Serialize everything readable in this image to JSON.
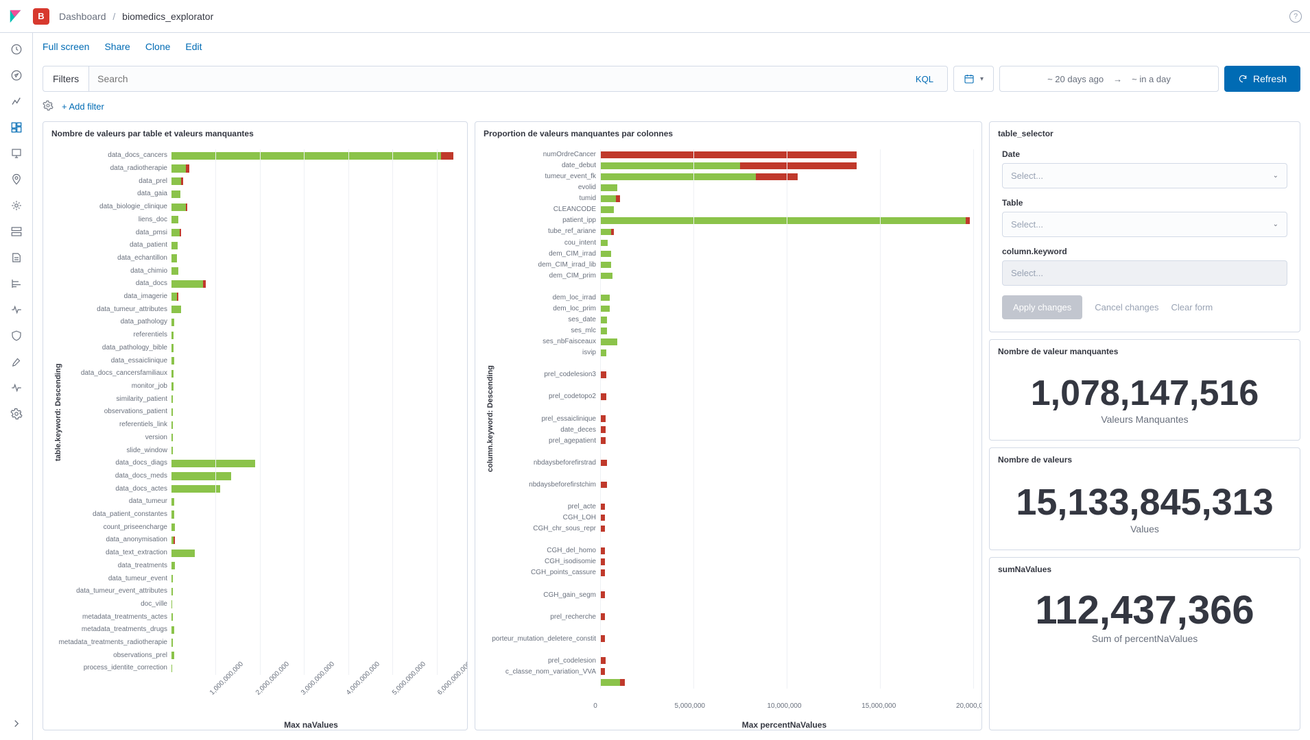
{
  "breadcrumb": {
    "root": "Dashboard",
    "current": "biomedics_explorator"
  },
  "spaceBadge": "B",
  "actions": {
    "fullscreen": "Full screen",
    "share": "Share",
    "clone": "Clone",
    "edit": "Edit"
  },
  "query": {
    "filtersLabel": "Filters",
    "placeholder": "Search",
    "kql": "KQL"
  },
  "dateRange": {
    "from": "~ 20 days ago",
    "to": "~ in a day"
  },
  "refreshLabel": "Refresh",
  "addFilter": "+ Add filter",
  "colors": {
    "green": "#8bc34a",
    "red": "#c0392b",
    "accent": "#006bb4"
  },
  "chart1": {
    "title": "Nombre de valeurs par table et valeurs manquantes",
    "yAxisTitle": "table.keyword: Descending",
    "xAxisTitle": "Max naValues",
    "ticks": [
      "1,000,000,000",
      "2,000,000,000",
      "3,000,000,000",
      "4,000,000,000",
      "5,000,000,000",
      "6,000,000,000"
    ],
    "max": 6500000000,
    "rows": [
      {
        "label": "data_docs_cancers",
        "g": 6100000000,
        "r": 280000000
      },
      {
        "label": "data_radiotherapie",
        "g": 320000000,
        "r": 90000000
      },
      {
        "label": "data_prel",
        "g": 220000000,
        "r": 40000000
      },
      {
        "label": "data_gaia",
        "g": 200000000,
        "r": 0
      },
      {
        "label": "data_biologie_clinique",
        "g": 320000000,
        "r": 40000000
      },
      {
        "label": "liens_doc",
        "g": 150000000,
        "r": 0
      },
      {
        "label": "data_pmsi",
        "g": 180000000,
        "r": 30000000
      },
      {
        "label": "data_patient",
        "g": 140000000,
        "r": 0
      },
      {
        "label": "data_echantillon",
        "g": 130000000,
        "r": 0
      },
      {
        "label": "data_chimio",
        "g": 150000000,
        "r": 0
      },
      {
        "label": "data_docs",
        "g": 720000000,
        "r": 60000000
      },
      {
        "label": "data_imagerie",
        "g": 120000000,
        "r": 40000000
      },
      {
        "label": "data_tumeur_attributes",
        "g": 220000000,
        "r": 0
      },
      {
        "label": "data_pathology",
        "g": 60000000,
        "r": 0
      },
      {
        "label": "referentiels",
        "g": 50000000,
        "r": 0
      },
      {
        "label": "data_pathology_bible",
        "g": 50000000,
        "r": 0
      },
      {
        "label": "data_essaiclinique",
        "g": 55000000,
        "r": 0
      },
      {
        "label": "data_docs_cancersfamiliaux",
        "g": 45000000,
        "r": 0
      },
      {
        "label": "monitor_job",
        "g": 40000000,
        "r": 0
      },
      {
        "label": "similarity_patient",
        "g": 35000000,
        "r": 0
      },
      {
        "label": "observations_patient",
        "g": 35000000,
        "r": 0
      },
      {
        "label": "referentiels_link",
        "g": 30000000,
        "r": 0
      },
      {
        "label": "version",
        "g": 25000000,
        "r": 0
      },
      {
        "label": "slide_window",
        "g": 25000000,
        "r": 0
      },
      {
        "label": "data_docs_diags",
        "g": 1900000000,
        "r": 0
      },
      {
        "label": "data_docs_meds",
        "g": 1350000000,
        "r": 0
      },
      {
        "label": "data_docs_actes",
        "g": 1100000000,
        "r": 0
      },
      {
        "label": "data_tumeur",
        "g": 60000000,
        "r": 0
      },
      {
        "label": "data_patient_constantes",
        "g": 55000000,
        "r": 0
      },
      {
        "label": "count_priseencharge",
        "g": 70000000,
        "r": 0
      },
      {
        "label": "data_anonymisation",
        "g": 50000000,
        "r": 20000000
      },
      {
        "label": "data_text_extraction",
        "g": 520000000,
        "r": 0
      },
      {
        "label": "data_treatments",
        "g": 70000000,
        "r": 0
      },
      {
        "label": "data_tumeur_event",
        "g": 25000000,
        "r": 0
      },
      {
        "label": "data_tumeur_event_attributes",
        "g": 25000000,
        "r": 0
      },
      {
        "label": "doc_ville",
        "g": 20000000,
        "r": 0
      },
      {
        "label": "metadata_treatments_actes",
        "g": 30000000,
        "r": 0
      },
      {
        "label": "metadata_treatments_drugs",
        "g": 60000000,
        "r": 0
      },
      {
        "label": "metadata_treatments_radiotherapie",
        "g": 25000000,
        "r": 0
      },
      {
        "label": "observations_prel",
        "g": 60000000,
        "r": 0
      },
      {
        "label": "process_identite_correction",
        "g": 20000000,
        "r": 0
      }
    ]
  },
  "chart2": {
    "title": "Proportion de valeurs manquantes par colonnes",
    "yAxisTitle": "column.keyword: Descending",
    "xAxisTitle": "Max percentNaValues",
    "ticks": [
      "0",
      "5,000,000",
      "10,000,000",
      "15,000,000",
      "20,000,000"
    ],
    "max": 24000000,
    "rows": [
      {
        "label": "numOrdreCancer",
        "g": 0,
        "r": 16500000
      },
      {
        "label": "date_debut",
        "g": 9000000,
        "r": 7500000
      },
      {
        "label": "tumeur_event_fk",
        "g": 10000000,
        "r": 2700000
      },
      {
        "label": "evolid",
        "g": 1100000,
        "r": 0
      },
      {
        "label": "tumid",
        "g": 1000000,
        "r": 300000
      },
      {
        "label": "CLEANCODE",
        "g": 900000,
        "r": 0
      },
      {
        "label": "patient_ipp",
        "g": 23500000,
        "r": 300000
      },
      {
        "label": "tube_ref_ariane",
        "g": 700000,
        "r": 200000
      },
      {
        "label": "cou_intent",
        "g": 500000,
        "r": 0
      },
      {
        "label": "dem_CIM_irrad",
        "g": 700000,
        "r": 0
      },
      {
        "label": "dem_CIM_irrad_lib",
        "g": 700000,
        "r": 0
      },
      {
        "label": "dem_CIM_prim",
        "g": 800000,
        "r": 0
      },
      {
        "label": "",
        "g": 0,
        "r": 0
      },
      {
        "label": "dem_loc_irrad",
        "g": 600000,
        "r": 0
      },
      {
        "label": "dem_loc_prim",
        "g": 600000,
        "r": 0
      },
      {
        "label": "ses_date",
        "g": 450000,
        "r": 0
      },
      {
        "label": "ses_mlc",
        "g": 450000,
        "r": 0
      },
      {
        "label": "ses_nbFaisceaux",
        "g": 1100000,
        "r": 0
      },
      {
        "label": "isvip",
        "g": 400000,
        "r": 0
      },
      {
        "label": "",
        "g": 0,
        "r": 0
      },
      {
        "label": "prel_codelesion3",
        "g": 0,
        "r": 400000
      },
      {
        "label": "",
        "g": 0,
        "r": 0
      },
      {
        "label": "prel_codetopo2",
        "g": 0,
        "r": 400000
      },
      {
        "label": "",
        "g": 0,
        "r": 0
      },
      {
        "label": "prel_essaiclinique",
        "g": 0,
        "r": 350000
      },
      {
        "label": "date_deces",
        "g": 0,
        "r": 350000
      },
      {
        "label": "prel_agepatient",
        "g": 0,
        "r": 350000
      },
      {
        "label": "",
        "g": 0,
        "r": 0
      },
      {
        "label": "nbdaysbeforefirstrad",
        "g": 0,
        "r": 450000
      },
      {
        "label": "",
        "g": 0,
        "r": 0
      },
      {
        "label": "nbdaysbeforefirstchim",
        "g": 0,
        "r": 450000
      },
      {
        "label": "",
        "g": 0,
        "r": 0
      },
      {
        "label": "prel_acte",
        "g": 0,
        "r": 300000
      },
      {
        "label": "CGH_LOH",
        "g": 0,
        "r": 300000
      },
      {
        "label": "CGH_chr_sous_repr",
        "g": 0,
        "r": 300000
      },
      {
        "label": "",
        "g": 0,
        "r": 0
      },
      {
        "label": "CGH_del_homo",
        "g": 0,
        "r": 300000
      },
      {
        "label": "CGH_isodisomie",
        "g": 0,
        "r": 300000
      },
      {
        "label": "CGH_points_cassure",
        "g": 0,
        "r": 300000
      },
      {
        "label": "",
        "g": 0,
        "r": 0
      },
      {
        "label": "CGH_gain_segm",
        "g": 0,
        "r": 300000
      },
      {
        "label": "",
        "g": 0,
        "r": 0
      },
      {
        "label": "prel_recherche",
        "g": 0,
        "r": 300000
      },
      {
        "label": "",
        "g": 0,
        "r": 0
      },
      {
        "label": "porteur_mutation_deletere_constit",
        "g": 0,
        "r": 300000
      },
      {
        "label": "",
        "g": 0,
        "r": 0
      },
      {
        "label": "prel_codelesion",
        "g": 0,
        "r": 350000
      },
      {
        "label": "c_classe_nom_variation_VVA",
        "g": 0,
        "r": 300000
      },
      {
        "label": "",
        "g": 1300000,
        "r": 300000
      }
    ]
  },
  "selector": {
    "title": "table_selector",
    "dateLabel": "Date",
    "tableLabel": "Table",
    "columnLabel": "column.keyword",
    "placeholder": "Select...",
    "apply": "Apply changes",
    "cancel": "Cancel changes",
    "clear": "Clear form"
  },
  "metric1": {
    "title": "Nombre de valeur manquantes",
    "value": "1,078,147,516",
    "sub": "Valeurs Manquantes"
  },
  "metric2": {
    "title": "Nombre de valeurs",
    "value": "15,133,845,313",
    "sub": "Values"
  },
  "metric3": {
    "title": "sumNaValues",
    "value": "112,437,366",
    "sub": "Sum of percentNaValues"
  },
  "sidenav": [
    "recent",
    "discover",
    "visualize",
    "dashboard",
    "canvas",
    "maps",
    "ml",
    "infra",
    "logs",
    "apm",
    "uptime",
    "siem",
    "devtools",
    "monitoring",
    "management"
  ]
}
